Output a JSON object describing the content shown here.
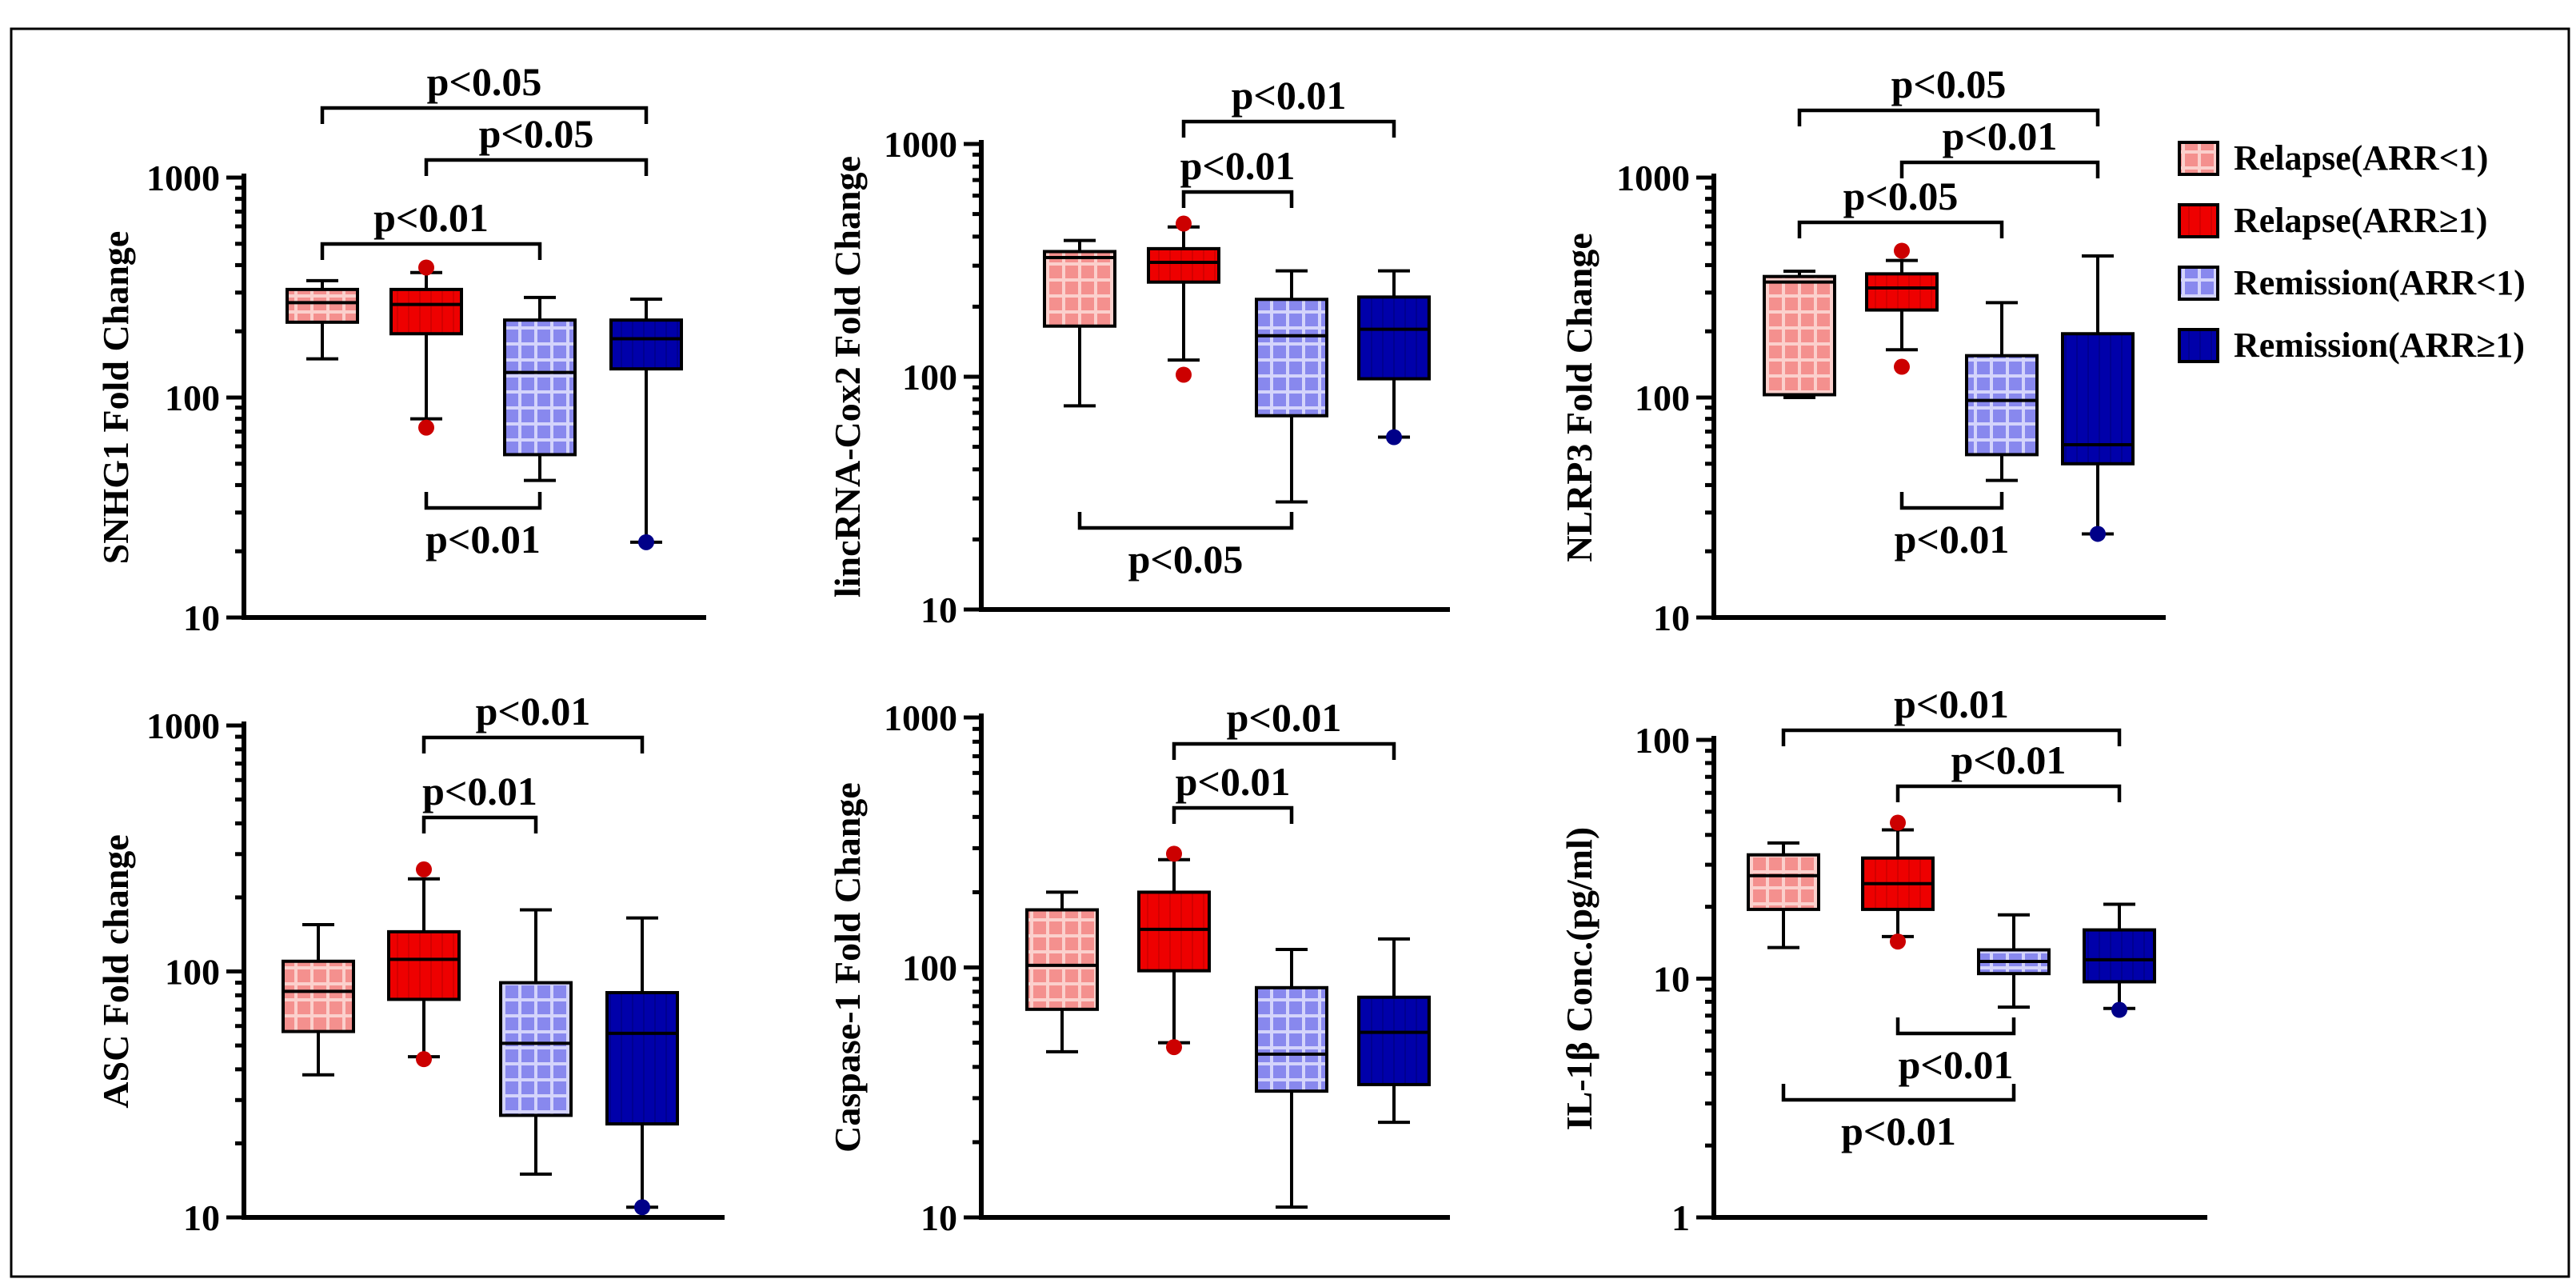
{
  "chart_data": [
    {
      "type": "box",
      "id": "snhg1",
      "ylabel": "SNHG1 Fold Change",
      "yscale": "log",
      "ylim": [
        10,
        1000
      ],
      "yticks": [
        "10",
        "100",
        "1000"
      ],
      "boxes": [
        {
          "group": "Relapse(ARR<1)",
          "min": 150,
          "q1": 220,
          "median": 270,
          "q3": 310,
          "max": 340,
          "outliers": []
        },
        {
          "group": "Relapse(ARR≥1)",
          "min": 80,
          "q1": 195,
          "median": 265,
          "q3": 310,
          "max": 370,
          "outliers": [
            73,
            390
          ]
        },
        {
          "group": "Remission(ARR<1)",
          "min": 42,
          "q1": 55,
          "median": 130,
          "q3": 225,
          "max": 285,
          "outliers": []
        },
        {
          "group": "Remission(ARR≥1)",
          "min": 22,
          "q1": 135,
          "median": 185,
          "q3": 225,
          "max": 280,
          "outliers": [
            22
          ]
        }
      ],
      "comparisons": [
        {
          "groups": [
            1,
            4
          ],
          "label": "p<0.05",
          "position": "above"
        },
        {
          "groups": [
            2,
            4
          ],
          "label": "p<0.05",
          "position": "above"
        },
        {
          "groups": [
            1,
            3
          ],
          "label": "p<0.01",
          "position": "above"
        },
        {
          "groups": [
            2,
            3
          ],
          "label": "p<0.01",
          "position": "below"
        }
      ]
    },
    {
      "type": "box",
      "id": "lincrna-cox2",
      "ylabel": "lincRNA-Cox2 Fold Change",
      "yscale": "log",
      "ylim": [
        10,
        1000
      ],
      "yticks": [
        "10",
        "100",
        "1000"
      ],
      "boxes": [
        {
          "group": "Relapse(ARR<1)",
          "min": 75,
          "q1": 165,
          "median": 325,
          "q3": 345,
          "max": 385,
          "outliers": []
        },
        {
          "group": "Relapse(ARR≥1)",
          "min": 118,
          "q1": 255,
          "median": 310,
          "q3": 355,
          "max": 440,
          "outliers": [
            102,
            455
          ]
        },
        {
          "group": "Remission(ARR<1)",
          "min": 29,
          "q1": 68,
          "median": 150,
          "q3": 215,
          "max": 285,
          "outliers": []
        },
        {
          "group": "Remission(ARR≥1)",
          "min": 55,
          "q1": 98,
          "median": 160,
          "q3": 220,
          "max": 285,
          "outliers": [
            55
          ]
        }
      ],
      "comparisons": [
        {
          "groups": [
            2,
            4
          ],
          "label": "p<0.01",
          "position": "above"
        },
        {
          "groups": [
            2,
            3
          ],
          "label": "p<0.01",
          "position": "above"
        },
        {
          "groups": [
            1,
            3
          ],
          "label": "p<0.05",
          "position": "below"
        }
      ]
    },
    {
      "type": "box",
      "id": "nlrp3",
      "ylabel": "NLRP3 Fold Change",
      "yscale": "log",
      "ylim": [
        10,
        1000
      ],
      "yticks": [
        "10",
        "100",
        "1000"
      ],
      "boxes": [
        {
          "group": "Relapse(ARR<1)",
          "min": 100,
          "q1": 103,
          "median": 335,
          "q3": 355,
          "max": 375,
          "outliers": []
        },
        {
          "group": "Relapse(ARR≥1)",
          "min": 165,
          "q1": 250,
          "median": 315,
          "q3": 365,
          "max": 420,
          "outliers": [
            138,
            465
          ]
        },
        {
          "group": "Remission(ARR<1)",
          "min": 42,
          "q1": 55,
          "median": 97,
          "q3": 155,
          "max": 270,
          "outliers": []
        },
        {
          "group": "Remission(ARR≥1)",
          "min": 24,
          "q1": 50,
          "median": 61,
          "q3": 195,
          "max": 440,
          "outliers": [
            24
          ]
        }
      ],
      "comparisons": [
        {
          "groups": [
            1,
            4
          ],
          "label": "p<0.05",
          "position": "above"
        },
        {
          "groups": [
            2,
            4
          ],
          "label": "p<0.01",
          "position": "above"
        },
        {
          "groups": [
            1,
            3
          ],
          "label": "p<0.05",
          "position": "above"
        },
        {
          "groups": [
            2,
            3
          ],
          "label": "p<0.01",
          "position": "below"
        }
      ]
    },
    {
      "type": "box",
      "id": "asc",
      "ylabel": "ASC Fold change",
      "yscale": "log",
      "ylim": [
        10,
        1000
      ],
      "yticks": [
        "10",
        "100",
        "1000"
      ],
      "boxes": [
        {
          "group": "Relapse(ARR<1)",
          "min": 38,
          "q1": 57,
          "median": 83,
          "q3": 110,
          "max": 155,
          "outliers": []
        },
        {
          "group": "Relapse(ARR≥1)",
          "min": 45,
          "q1": 77,
          "median": 112,
          "q3": 145,
          "max": 238,
          "outliers": [
            44,
            260
          ]
        },
        {
          "group": "Remission(ARR<1)",
          "min": 15,
          "q1": 26,
          "median": 51,
          "q3": 90,
          "max": 178,
          "outliers": []
        },
        {
          "group": "Remission(ARR≥1)",
          "min": 11,
          "q1": 24,
          "median": 56,
          "q3": 82,
          "max": 165,
          "outliers": [
            11
          ]
        }
      ],
      "comparisons": [
        {
          "groups": [
            2,
            4
          ],
          "label": "p<0.01",
          "position": "above"
        },
        {
          "groups": [
            2,
            3
          ],
          "label": "p<0.01",
          "position": "above"
        }
      ]
    },
    {
      "type": "box",
      "id": "caspase-1",
      "ylabel": "Caspase-1 Fold Change",
      "yscale": "log",
      "ylim": [
        10,
        1000
      ],
      "yticks": [
        "10",
        "100",
        "1000"
      ],
      "boxes": [
        {
          "group": "Relapse(ARR<1)",
          "min": 46,
          "q1": 68,
          "median": 102,
          "q3": 170,
          "max": 200,
          "outliers": []
        },
        {
          "group": "Relapse(ARR≥1)",
          "min": 50,
          "q1": 97,
          "median": 142,
          "q3": 200,
          "max": 270,
          "outliers": [
            48,
            285
          ]
        },
        {
          "group": "Remission(ARR<1)",
          "min": 11,
          "q1": 32,
          "median": 45,
          "q3": 83,
          "max": 118,
          "outliers": []
        },
        {
          "group": "Remission(ARR≥1)",
          "min": 24,
          "q1": 34,
          "median": 55,
          "q3": 76,
          "max": 130,
          "outliers": []
        }
      ],
      "comparisons": [
        {
          "groups": [
            2,
            4
          ],
          "label": "p<0.01",
          "position": "above"
        },
        {
          "groups": [
            2,
            3
          ],
          "label": "p<0.01",
          "position": "above"
        }
      ]
    },
    {
      "type": "box",
      "id": "il-1b",
      "ylabel": "IL-1β Conc.(pg/ml)",
      "yscale": "log",
      "ylim": [
        1,
        100
      ],
      "yticks": [
        "1",
        "10",
        "100"
      ],
      "boxes": [
        {
          "group": "Relapse(ARR<1)",
          "min": 13.5,
          "q1": 19.5,
          "median": 27,
          "q3": 33,
          "max": 37,
          "outliers": []
        },
        {
          "group": "Relapse(ARR≥1)",
          "min": 15,
          "q1": 19.5,
          "median": 25,
          "q3": 32,
          "max": 42,
          "outliers": [
            14.3,
            45
          ]
        },
        {
          "group": "Remission(ARR<1)",
          "min": 7.6,
          "q1": 10.5,
          "median": 11.8,
          "q3": 13.2,
          "max": 18.5,
          "outliers": []
        },
        {
          "group": "Remission(ARR≥1)",
          "min": 7.5,
          "q1": 9.7,
          "median": 12,
          "q3": 16,
          "max": 20.5,
          "outliers": [
            7.4
          ]
        }
      ],
      "comparisons": [
        {
          "groups": [
            1,
            4
          ],
          "label": "p<0.01",
          "position": "above"
        },
        {
          "groups": [
            2,
            4
          ],
          "label": "p<0.01",
          "position": "above"
        },
        {
          "groups": [
            2,
            3
          ],
          "label": "p<0.01",
          "position": "below"
        },
        {
          "groups": [
            1,
            3
          ],
          "label": "p<0.01",
          "position": "below"
        }
      ]
    }
  ],
  "legend": {
    "placement": "top-right",
    "entries": [
      {
        "label": "Relapse(ARR<1)",
        "color": "#f4908e",
        "pattern": "grid-light"
      },
      {
        "label": "Relapse(ARR≥1)",
        "color": "#ee0000",
        "pattern": "solid"
      },
      {
        "label": "Remission(ARR<1)",
        "color": "#8888ee",
        "pattern": "grid-light"
      },
      {
        "label": "Remission(ARR≥1)",
        "color": "#0000aa",
        "pattern": "solid-dark"
      }
    ]
  },
  "colors": {
    "relapse_low": "#f4908e",
    "relapse_high": "#ee0000",
    "remission_low": "#8888ee",
    "remission_high": "#0000aa",
    "outlier_red": "#cc0000",
    "outlier_blue": "#000088"
  }
}
